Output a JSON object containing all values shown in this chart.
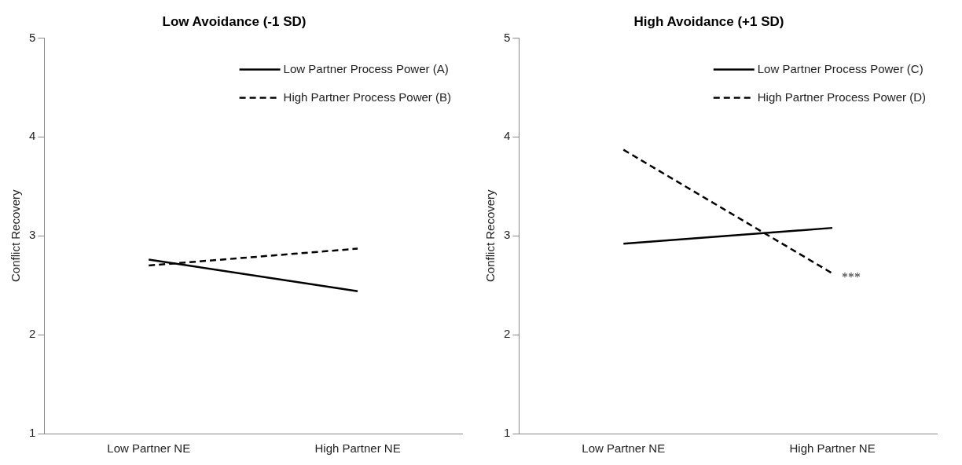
{
  "chart_data": [
    {
      "type": "line",
      "title": "Low Avoidance (-1 SD)",
      "ylabel": "Conflict Recovery",
      "categories": [
        "Low Partner NE",
        "High Partner NE"
      ],
      "series": [
        {
          "name": "Low Partner Process Power (A)",
          "color": "#000000",
          "values": [
            2.76,
            2.44
          ],
          "line_style": "solid"
        },
        {
          "name": "High Partner Process Power (B)",
          "color": "#000000",
          "values": [
            2.7,
            2.87
          ],
          "line_style": "dashed"
        }
      ],
      "ylim": [
        1,
        5
      ],
      "yticks": [
        1,
        2,
        3,
        4,
        5
      ],
      "grid": false,
      "legend": "top right",
      "marker": "none"
    },
    {
      "type": "line",
      "title": "High Avoidance (+1 SD)",
      "ylabel": "Conflict Recovery",
      "categories": [
        "Low Partner NE",
        "High Partner NE"
      ],
      "series": [
        {
          "name": "Low Partner Process Power (C)",
          "color": "#000000",
          "values": [
            2.92,
            3.08
          ],
          "line_style": "solid"
        },
        {
          "name": "High Partner Process Power (D)",
          "color": "#000000",
          "values": [
            3.87,
            2.62
          ],
          "line_style": "dashed"
        }
      ],
      "ylim": [
        1,
        5
      ],
      "yticks": [
        1,
        2,
        3,
        4,
        5
      ],
      "grid": false,
      "legend": "top right",
      "marker": "none",
      "annotations": [
        {
          "text": "***",
          "x": "High Partner NE",
          "y": 2.62
        }
      ]
    }
  ]
}
